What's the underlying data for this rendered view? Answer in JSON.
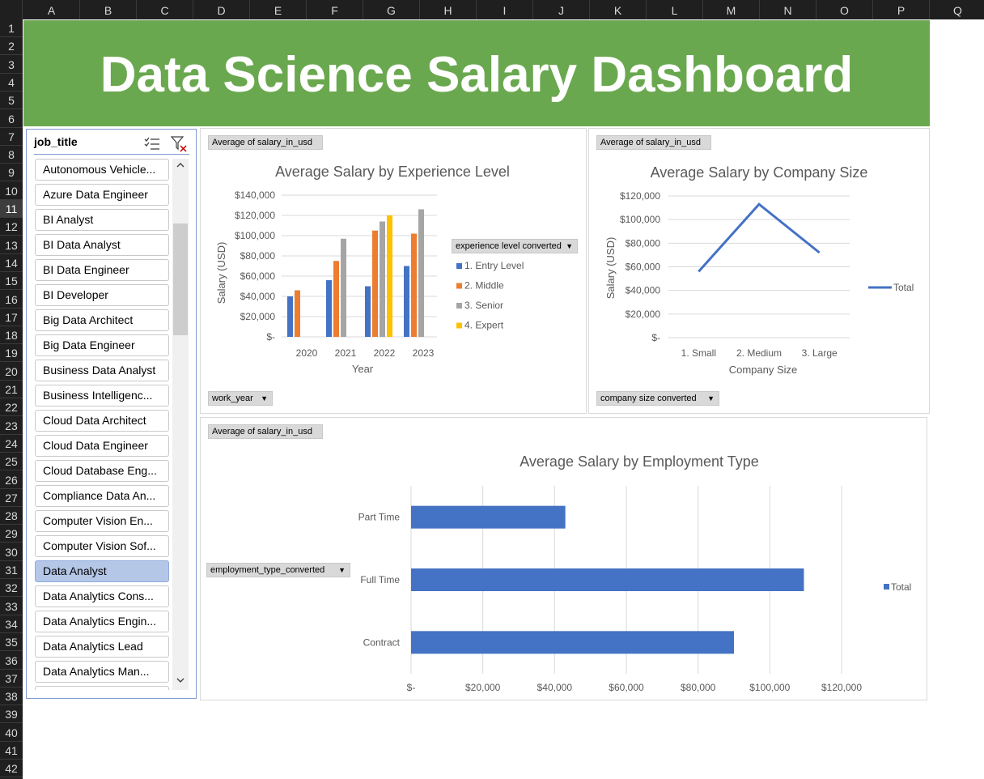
{
  "spreadsheet": {
    "columns": [
      "A",
      "B",
      "C",
      "D",
      "E",
      "F",
      "G",
      "H",
      "I",
      "J",
      "K",
      "L",
      "M",
      "N",
      "O",
      "P",
      "Q"
    ],
    "rows": [
      "1",
      "2",
      "3",
      "4",
      "5",
      "6",
      "7",
      "8",
      "9",
      "10",
      "11",
      "12",
      "13",
      "14",
      "15",
      "16",
      "17",
      "18",
      "19",
      "20",
      "21",
      "22",
      "23",
      "24",
      "25",
      "26",
      "27",
      "28",
      "29",
      "30",
      "31",
      "32",
      "33",
      "34",
      "35",
      "36",
      "37",
      "38",
      "39",
      "40",
      "41",
      "42"
    ],
    "selected_row": "11"
  },
  "dashboard": {
    "title": "Data Science Salary Dashboard",
    "banner_color": "#6aa84f"
  },
  "slicer": {
    "field": "job_title",
    "icons": [
      "multi-select-icon",
      "clear-filter-icon"
    ],
    "items": [
      {
        "label": "Autonomous Vehicle...",
        "selected": false
      },
      {
        "label": "Azure Data Engineer",
        "selected": false
      },
      {
        "label": "BI Analyst",
        "selected": false
      },
      {
        "label": "BI Data Analyst",
        "selected": false
      },
      {
        "label": "BI Data Engineer",
        "selected": false
      },
      {
        "label": "BI Developer",
        "selected": false
      },
      {
        "label": "Big Data Architect",
        "selected": false
      },
      {
        "label": "Big Data Engineer",
        "selected": false
      },
      {
        "label": "Business Data Analyst",
        "selected": false
      },
      {
        "label": "Business Intelligenc...",
        "selected": false
      },
      {
        "label": "Cloud Data Architect",
        "selected": false
      },
      {
        "label": "Cloud Data Engineer",
        "selected": false
      },
      {
        "label": "Cloud Database Eng...",
        "selected": false
      },
      {
        "label": "Compliance Data An...",
        "selected": false
      },
      {
        "label": "Computer Vision En...",
        "selected": false
      },
      {
        "label": "Computer Vision Sof...",
        "selected": false
      },
      {
        "label": "Data Analyst",
        "selected": true
      },
      {
        "label": "Data Analytics Cons...",
        "selected": false
      },
      {
        "label": "Data Analytics Engin...",
        "selected": false
      },
      {
        "label": "Data Analytics Lead",
        "selected": false
      },
      {
        "label": "Data Analytics Man...",
        "selected": false
      }
    ],
    "selected_color": "#b4c7e7"
  },
  "charts": {
    "experience": {
      "value_button": "Average of salary_in_usd",
      "axis_button": "work_year",
      "legend_button": "experience level converted"
    },
    "company": {
      "value_button": "Average of salary_in_usd",
      "axis_button": "company size converted"
    },
    "employment": {
      "value_button": "Average of salary_in_usd",
      "axis_button": "employment_type_converted"
    }
  },
  "chart_data": [
    {
      "type": "bar",
      "title": "Average Salary by Experience Level",
      "xlabel": "Year",
      "ylabel": "Salary (USD)",
      "categories": [
        "2020",
        "2021",
        "2022",
        "2023"
      ],
      "ylim": [
        0,
        140000
      ],
      "yticks": [
        "$-",
        "$20,000",
        "$40,000",
        "$60,000",
        "$80,000",
        "$100,000",
        "$120,000",
        "$140,000"
      ],
      "grid": true,
      "legend": "right",
      "series": [
        {
          "name": "1. Entry Level",
          "color": "#4472c4",
          "values": [
            40000,
            56000,
            50000,
            70000
          ]
        },
        {
          "name": "2. Middle",
          "color": "#ed7d31",
          "values": [
            46000,
            75000,
            105000,
            102000
          ]
        },
        {
          "name": "3. Senior",
          "color": "#a5a5a5",
          "values": [
            null,
            97000,
            114000,
            126000
          ]
        },
        {
          "name": "4. Expert",
          "color": "#ffc000",
          "values": [
            null,
            null,
            120000,
            null
          ]
        }
      ]
    },
    {
      "type": "line",
      "title": "Average Salary by Company Size",
      "xlabel": "Company Size",
      "ylabel": "Salary (USD)",
      "categories": [
        "1. Small",
        "2. Medium",
        "3. Large"
      ],
      "ylim": [
        0,
        120000
      ],
      "yticks": [
        "$-",
        "$20,000",
        "$40,000",
        "$60,000",
        "$80,000",
        "$100,000",
        "$120,000"
      ],
      "grid": true,
      "legend": "right",
      "series": [
        {
          "name": "Total",
          "color": "#4472c4",
          "values": [
            56000,
            113000,
            72000
          ]
        }
      ]
    },
    {
      "type": "bar",
      "orientation": "horizontal",
      "title": "Average Salary by Employment Type",
      "categories": [
        "Part Time",
        "Full Time",
        "Contract"
      ],
      "xlim": [
        0,
        120000
      ],
      "xticks": [
        "$-",
        "$20,000",
        "$40,000",
        "$60,000",
        "$80,000",
        "$100,000",
        "$120,000"
      ],
      "grid": true,
      "legend": "right",
      "series": [
        {
          "name": "Total",
          "color": "#4472c4",
          "values": [
            43000,
            109500,
            90000
          ]
        }
      ]
    }
  ]
}
